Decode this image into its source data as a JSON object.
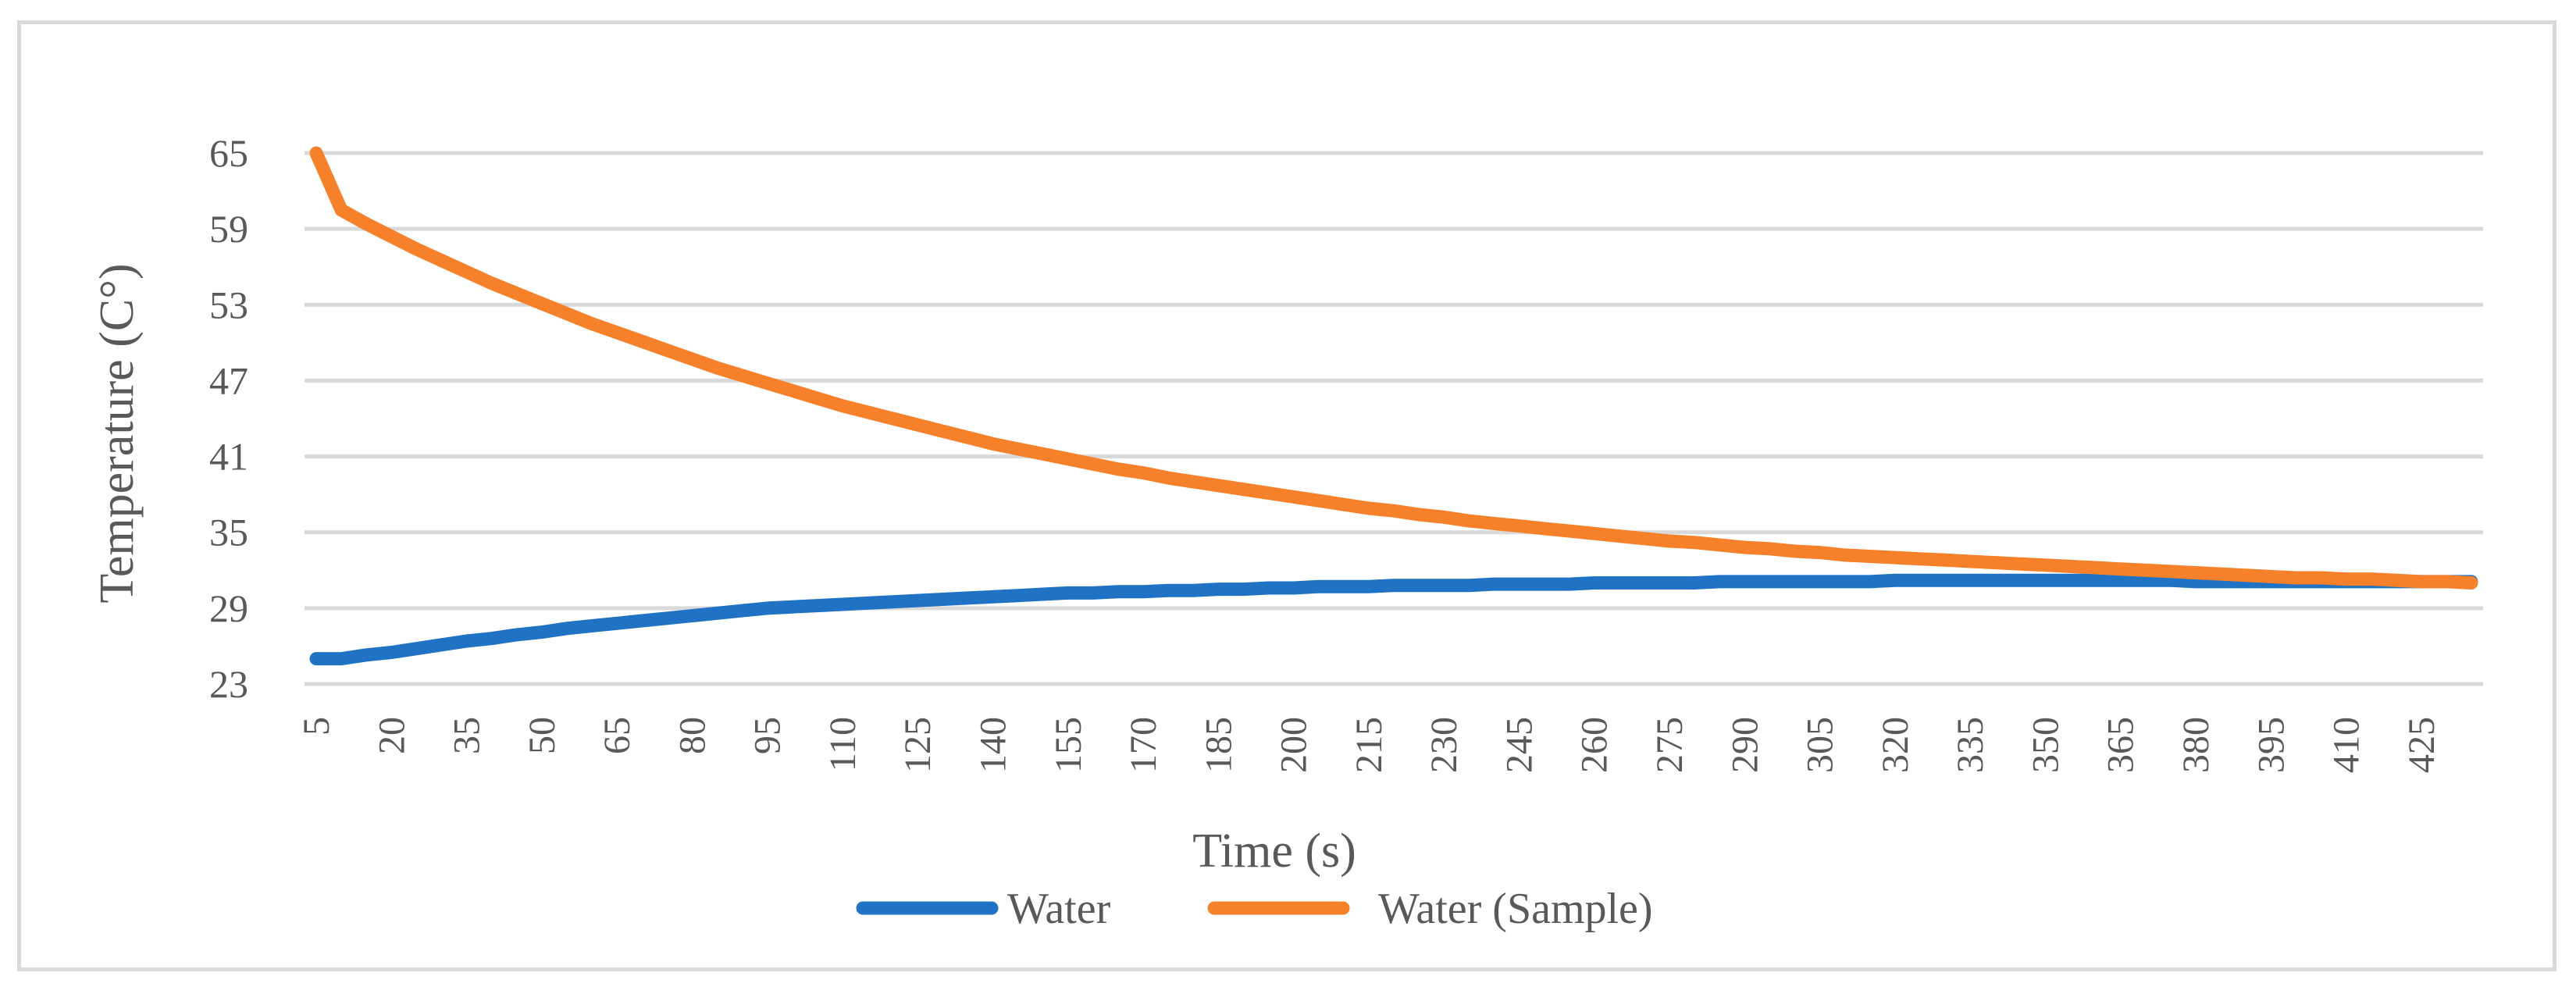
{
  "chart_data": {
    "type": "line",
    "title": "",
    "xlabel": "Time (s)",
    "ylabel": "Temperature (C°)",
    "ylim": [
      23,
      65
    ],
    "yticks": [
      23,
      29,
      35,
      41,
      47,
      53,
      59,
      65
    ],
    "x_tick_labels": [
      "5",
      "20",
      "35",
      "50",
      "65",
      "80",
      "95",
      "110",
      "125",
      "140",
      "155",
      "170",
      "185",
      "200",
      "215",
      "230",
      "245",
      "260",
      "275",
      "290",
      "305",
      "320",
      "335",
      "350",
      "365",
      "380",
      "395",
      "410",
      "425"
    ],
    "x": [
      5,
      10,
      15,
      20,
      25,
      30,
      35,
      40,
      45,
      50,
      55,
      60,
      65,
      70,
      75,
      80,
      85,
      90,
      95,
      100,
      105,
      110,
      115,
      120,
      125,
      130,
      135,
      140,
      145,
      150,
      155,
      160,
      165,
      170,
      175,
      180,
      185,
      190,
      195,
      200,
      205,
      210,
      215,
      220,
      225,
      230,
      235,
      240,
      245,
      250,
      255,
      260,
      265,
      270,
      275,
      280,
      285,
      290,
      295,
      300,
      305,
      310,
      315,
      320,
      325,
      330,
      335,
      340,
      345,
      350,
      355,
      360,
      365,
      370,
      375,
      380,
      385,
      390,
      395,
      400,
      405,
      410,
      415,
      420,
      425,
      430,
      435
    ],
    "grid": true,
    "legend": "bottom",
    "series": [
      {
        "name": "Water",
        "color": "#1f72c4",
        "values": [
          25,
          25,
          25.3,
          25.5,
          25.8,
          26.1,
          26.4,
          26.6,
          26.9,
          27.1,
          27.4,
          27.6,
          27.8,
          28,
          28.2,
          28.4,
          28.6,
          28.8,
          29,
          29.1,
          29.2,
          29.3,
          29.4,
          29.5,
          29.6,
          29.7,
          29.8,
          29.9,
          30,
          30.1,
          30.2,
          30.2,
          30.3,
          30.3,
          30.4,
          30.4,
          30.5,
          30.5,
          30.6,
          30.6,
          30.7,
          30.7,
          30.7,
          30.8,
          30.8,
          30.8,
          30.8,
          30.9,
          30.9,
          30.9,
          30.9,
          31,
          31,
          31,
          31,
          31,
          31.1,
          31.1,
          31.1,
          31.1,
          31.1,
          31.1,
          31.1,
          31.2,
          31.2,
          31.2,
          31.2,
          31.2,
          31.2,
          31.2,
          31.2,
          31.2,
          31.2,
          31.2,
          31.2,
          31.1,
          31.1,
          31.1,
          31.1,
          31.1,
          31.1,
          31.1,
          31.1,
          31.1,
          31.1,
          31.1,
          31.1
        ]
      },
      {
        "name": "Water (Sample)",
        "color": "#f7812b",
        "values": [
          65,
          60.5,
          59.4,
          58.4,
          57.4,
          56.5,
          55.6,
          54.7,
          53.9,
          53.1,
          52.3,
          51.5,
          50.8,
          50.1,
          49.4,
          48.7,
          48,
          47.4,
          46.8,
          46.2,
          45.6,
          45,
          44.5,
          44,
          43.5,
          43,
          42.5,
          42,
          41.6,
          41.2,
          40.8,
          40.4,
          40,
          39.7,
          39.3,
          39,
          38.7,
          38.4,
          38.1,
          37.8,
          37.5,
          37.2,
          36.9,
          36.7,
          36.4,
          36.2,
          35.9,
          35.7,
          35.5,
          35.3,
          35.1,
          34.9,
          34.7,
          34.5,
          34.3,
          34.2,
          34,
          33.8,
          33.7,
          33.5,
          33.4,
          33.2,
          33.1,
          33,
          32.9,
          32.8,
          32.7,
          32.6,
          32.5,
          32.4,
          32.3,
          32.2,
          32.1,
          32,
          31.9,
          31.8,
          31.7,
          31.6,
          31.5,
          31.4,
          31.4,
          31.3,
          31.3,
          31.2,
          31.1,
          31.1,
          31
        ]
      }
    ]
  }
}
